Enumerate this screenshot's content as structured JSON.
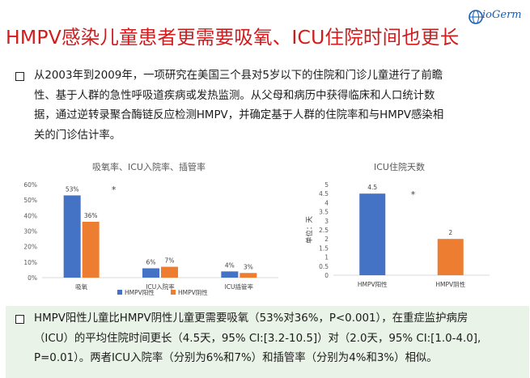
{
  "logo": {
    "text": "ioGerm",
    "mark": "B-globe-icon"
  },
  "title": "HMPV感染儿童患者更需要吸氧、ICU住院时间也更长",
  "intro_lines": [
    "从2003年到2009年，一项研究在美国三个县对5岁以下的住院和门诊儿童进行了前瞻",
    "性、基于人群的急性呼吸道疾病或发热监测。从父母和病历中获得临床和人口统计数",
    "据，通过逆转录聚合酶链反应检测HMPV，并确定基于人群的住院率和与HMPV感染相",
    "关的门诊估计率。"
  ],
  "summary_lines": [
    "HMPV阳性儿童比HMPV阴性儿童更需要吸氧（53%对36%，P<0.001），在重症监护病房",
    "（ICU）的平均住院时间更长（4.5天，95% CI:[3.2-10.5]）对（2.0天，95% CI:[1.0-4.0],",
    "P=0.01）。两者ICU入院率（分别为6%和7%）和插管率（分别为4%和3%）相似。"
  ],
  "colors": {
    "positive": "#4472c4",
    "negative": "#ed7d31",
    "title_red": "#d01c1c",
    "summary_bg": "#eaf3e7"
  },
  "chart_data": [
    {
      "type": "bar",
      "title": "吸氧率、ICU入院率、插管率",
      "categories": [
        "吸氧",
        "ICU入院率",
        "ICU插管率"
      ],
      "series": [
        {
          "name": "HMPV阳性",
          "values": [
            53,
            6,
            4
          ],
          "labels": [
            "53%",
            "6%",
            "4%"
          ]
        },
        {
          "name": "HMPV阴性",
          "values": [
            36,
            7,
            3
          ],
          "labels": [
            "36%",
            "7%",
            "3%"
          ]
        }
      ],
      "yticks": [
        "0%",
        "10%",
        "20%",
        "30%",
        "40%",
        "50%",
        "60%"
      ],
      "ylim": [
        0,
        60
      ],
      "annotation": "*",
      "legend": "bottom",
      "grid": false
    },
    {
      "type": "bar",
      "title": "ICU住院天数",
      "ylabel": "单位：天",
      "categories": [
        "HMPV阳性",
        "HMPV阴性"
      ],
      "values": [
        4.5,
        2
      ],
      "labels": [
        "4.5",
        "2"
      ],
      "yticks": [
        "0",
        "0.5",
        "1",
        "1.5",
        "2",
        "2.5",
        "3",
        "3.5",
        "4",
        "4.5",
        "5"
      ],
      "ylim": [
        0,
        5
      ],
      "annotation": "*",
      "grid": false
    }
  ]
}
